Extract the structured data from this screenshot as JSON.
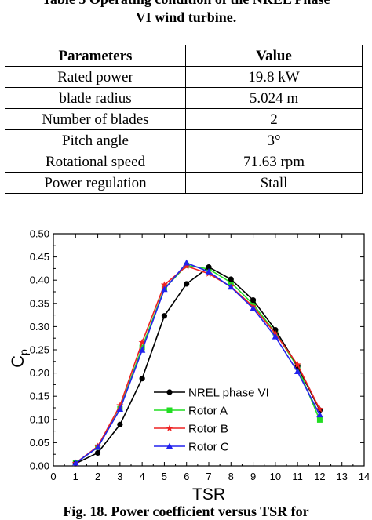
{
  "table": {
    "caption_line1": "Table 5 Operating condition of the NREL Phase",
    "caption_line2": "VI wind turbine.",
    "header": [
      "Parameters",
      "Value"
    ],
    "rows": [
      [
        "Rated power",
        "19.8 kW"
      ],
      [
        "blade radius",
        "5.024 m"
      ],
      [
        "Number of blades",
        "2"
      ],
      [
        "Pitch angle",
        "3°"
      ],
      [
        "Rotational speed",
        "71.63 rpm"
      ],
      [
        "Power regulation",
        "Stall"
      ]
    ]
  },
  "figure_caption": "Fig. 18. Power coefficient versus TSR for",
  "chart_data": {
    "type": "line",
    "xlabel": "TSR",
    "ylabel_main": "C",
    "ylabel_sub": "p",
    "xlim": [
      0,
      14
    ],
    "ylim": [
      0,
      0.5
    ],
    "xticks": [
      0,
      1,
      2,
      3,
      4,
      5,
      6,
      7,
      8,
      9,
      10,
      11,
      12,
      13,
      14
    ],
    "yticks": [
      "0.00",
      "0.05",
      "0.10",
      "0.15",
      "0.20",
      "0.25",
      "0.30",
      "0.35",
      "0.40",
      "0.45",
      "0.50"
    ],
    "x": [
      1,
      2,
      3,
      4,
      5,
      6,
      7,
      8,
      9,
      10,
      11,
      12
    ],
    "series": [
      {
        "name": "NREL phase VI",
        "color": "#000000",
        "marker": "circle",
        "values": [
          0.005,
          0.028,
          0.089,
          0.188,
          0.323,
          0.392,
          0.428,
          0.402,
          0.357,
          0.293,
          0.215,
          0.12
        ]
      },
      {
        "name": "Rotor A",
        "color": "#22dd22",
        "marker": "square",
        "values": [
          0.006,
          0.04,
          0.123,
          0.255,
          0.382,
          0.432,
          0.424,
          0.395,
          0.348,
          0.287,
          0.213,
          0.099
        ]
      },
      {
        "name": "Rotor B",
        "color": "#ee2222",
        "marker": "star",
        "values": [
          0.006,
          0.042,
          0.13,
          0.266,
          0.39,
          0.43,
          0.414,
          0.386,
          0.343,
          0.285,
          0.218,
          0.122
        ]
      },
      {
        "name": "Rotor C",
        "color": "#2222ee",
        "marker": "triangle",
        "values": [
          0.006,
          0.04,
          0.122,
          0.249,
          0.38,
          0.437,
          0.418,
          0.385,
          0.339,
          0.278,
          0.203,
          0.11
        ]
      }
    ],
    "legend_position": "bottom-right"
  }
}
